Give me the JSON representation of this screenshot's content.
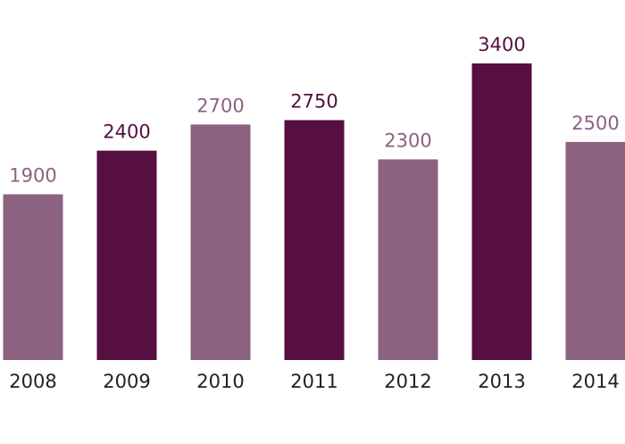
{
  "chart_data": {
    "type": "bar",
    "categories": [
      "2008",
      "2009",
      "2010",
      "2011",
      "2012",
      "2013",
      "2014"
    ],
    "values": [
      1900,
      2400,
      2700,
      2750,
      2300,
      3400,
      2500
    ],
    "colors": [
      "#8c6281",
      "#560f40",
      "#8c6281",
      "#560f40",
      "#8c6281",
      "#560f40",
      "#8c6281"
    ],
    "label_color": "#222222"
  }
}
